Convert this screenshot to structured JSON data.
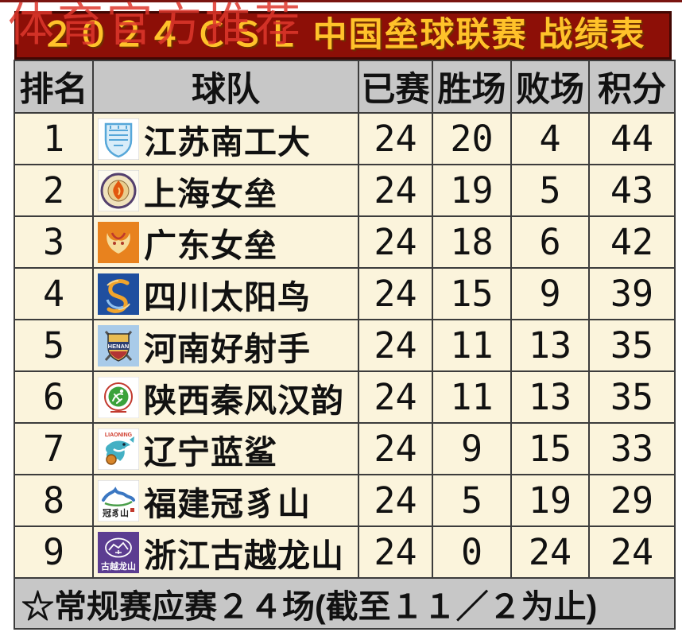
{
  "watermark": {
    "text": "体育官方推荐",
    "color": "#df372c"
  },
  "header": {
    "title_bar_bg": "#8d0f07",
    "title_color": "#ffc22a"
  },
  "chart_data": {
    "type": "table",
    "title": "２０２４ ＣＳＬ 中国垒球联赛 战绩表",
    "columns": [
      "排名",
      "球队",
      "已赛",
      "胜场",
      "败场",
      "积分"
    ],
    "rows": [
      {
        "rank": "1",
        "team": "江苏南工大",
        "played": "24",
        "wins": "20",
        "losses": "4",
        "points": "44",
        "logo": {
          "id": "jiangsu-shield",
          "bg": "#ffffff",
          "accent": "#56a7d9"
        }
      },
      {
        "rank": "2",
        "team": "上海女垒",
        "played": "24",
        "wins": "19",
        "losses": "5",
        "points": "43",
        "logo": {
          "id": "shanghai-torch",
          "bg": "#fdfaef",
          "accent": "#e2570f",
          "ring": "#54406e"
        }
      },
      {
        "rank": "3",
        "team": "广东女垒",
        "played": "24",
        "wins": "18",
        "losses": "6",
        "points": "42",
        "logo": {
          "id": "guangdong-ram",
          "bg": "#e8821e",
          "accent": "#f6dc9a"
        }
      },
      {
        "rank": "4",
        "team": "四川太阳鸟",
        "played": "24",
        "wins": "15",
        "losses": "9",
        "points": "39",
        "logo": {
          "id": "sichuan-phoenix",
          "bg": "#1f4f9f",
          "accent": "#f1a42c"
        }
      },
      {
        "rank": "5",
        "team": "河南好射手",
        "played": "24",
        "wins": "11",
        "losses": "13",
        "points": "35",
        "logo": {
          "id": "henan-shield",
          "bg": "#a9cbe9",
          "accent": "#2c3e70",
          "text": "HENAN"
        }
      },
      {
        "rank": "6",
        "team": "陕西秦风汉韵",
        "played": "24",
        "wins": "11",
        "losses": "13",
        "points": "35",
        "logo": {
          "id": "shaanxi-circle",
          "bg": "#ffffff",
          "accent": "#3aa23b",
          "ring": "#c23a2e"
        }
      },
      {
        "rank": "7",
        "team": "辽宁蓝鲨",
        "played": "24",
        "wins": "9",
        "losses": "15",
        "points": "33",
        "logo": {
          "id": "liaoning-shark",
          "bg": "#ffffff",
          "accent": "#44b0c4",
          "text": "LIAONING",
          "text_color": "#d03a2a"
        }
      },
      {
        "rank": "8",
        "team": "福建冠豸山",
        "played": "24",
        "wins": "5",
        "losses": "19",
        "points": "29",
        "logo": {
          "id": "fujian-mountain",
          "bg": "#ffffff",
          "accent": "#3b77c2",
          "text": "冠豸山"
        }
      },
      {
        "rank": "9",
        "team": "浙江古越龙山",
        "played": "24",
        "wins": "0",
        "losses": "24",
        "points": "24",
        "logo": {
          "id": "zhejiang-emblem",
          "bg": "#5c3d91",
          "accent": "#ffffff",
          "text": "古越龙山"
        }
      }
    ],
    "footnote": "☆常规赛应赛２４场(截至１１／２为止)"
  },
  "colors": {
    "topline": "#7a1410",
    "title_bg": "#8d0f07",
    "title_fg": "#ffc22a",
    "grey": "#c7c7c7",
    "cream": "#fbf4dc",
    "grid": "#3c3c3c",
    "watermark": "#df372c"
  }
}
